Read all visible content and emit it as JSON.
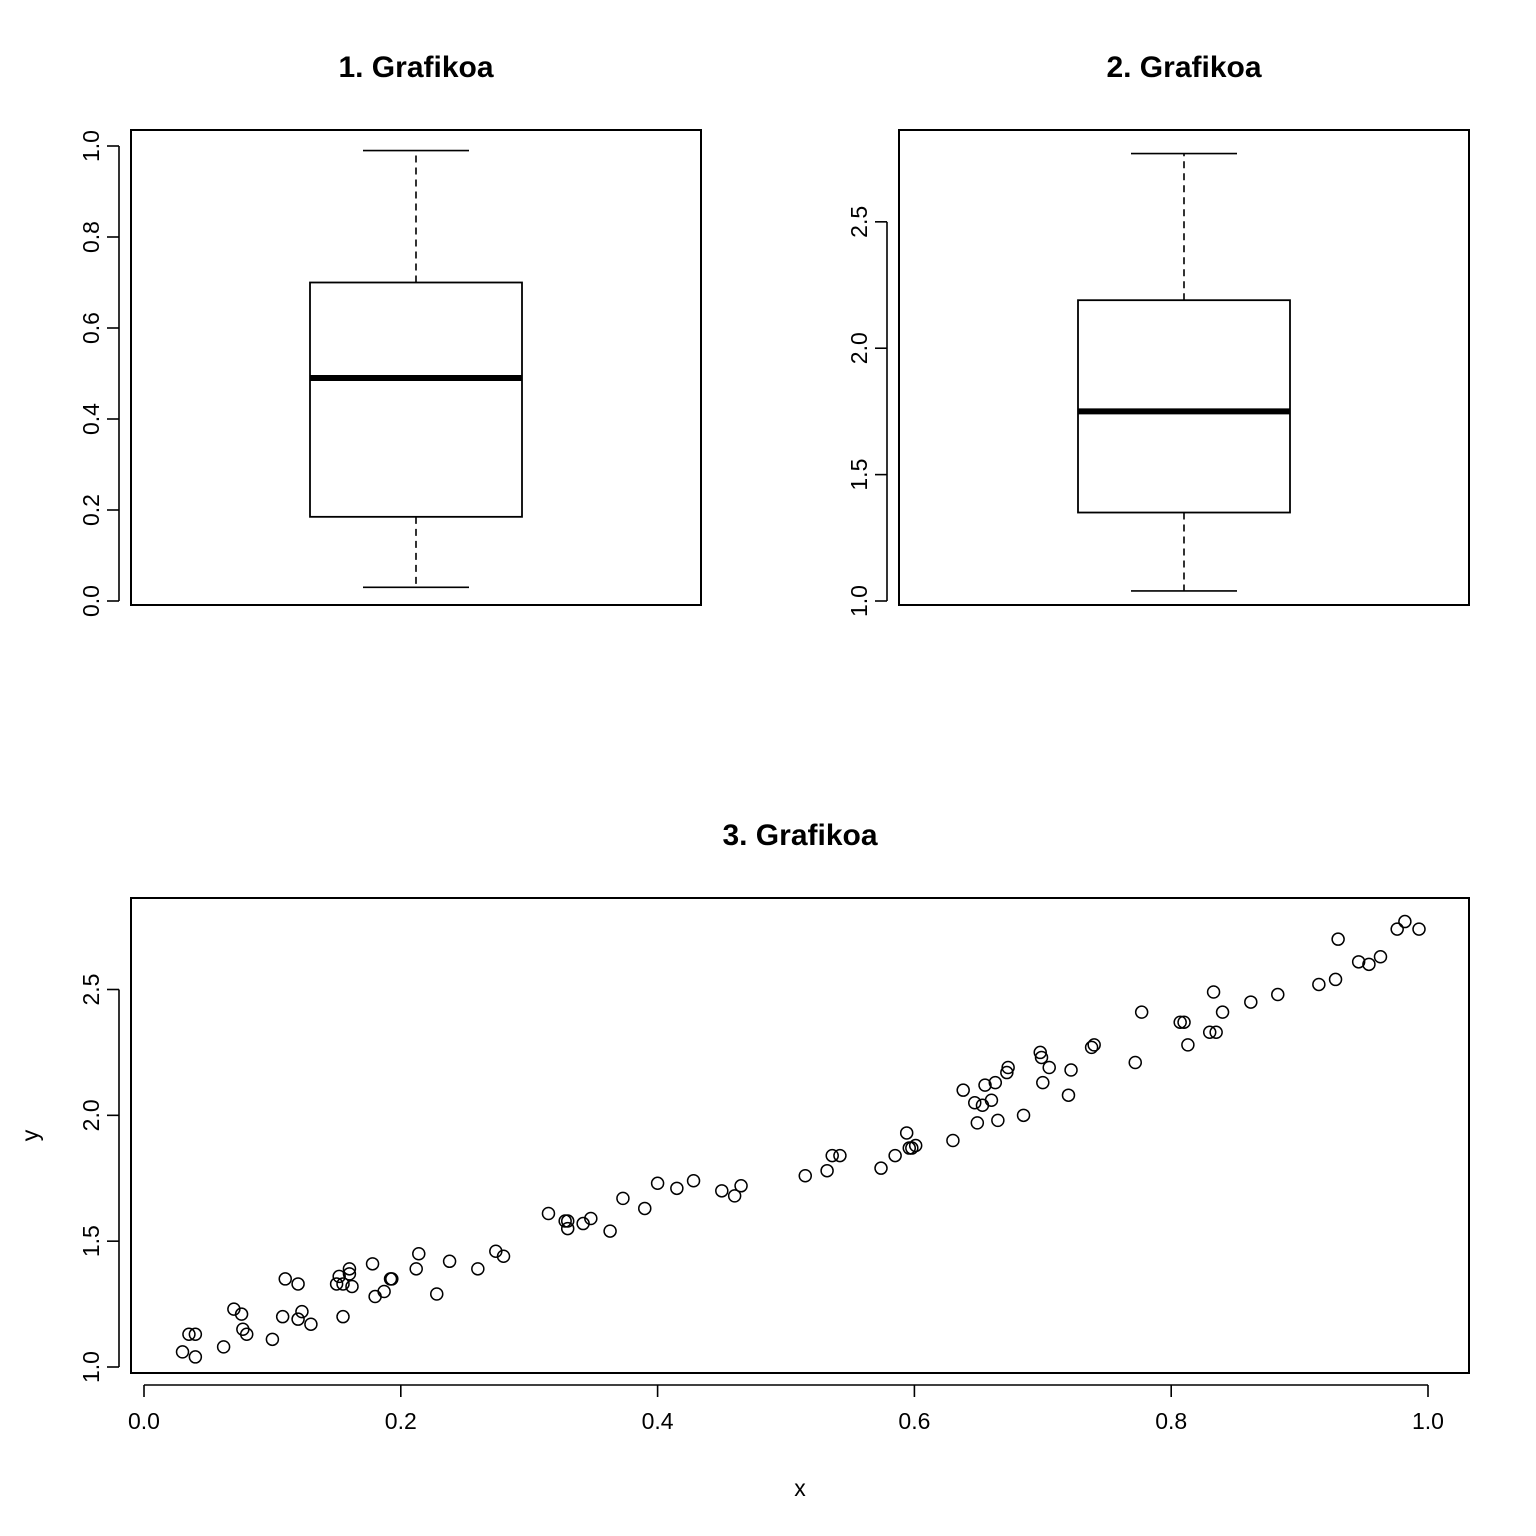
{
  "chart_data": [
    {
      "type": "boxplot",
      "title": "1. Grafikoa",
      "xlabel": "",
      "ylabel": "",
      "ylim": [
        0.0,
        1.0
      ],
      "yticks": [
        "0.0",
        "0.2",
        "0.4",
        "0.6",
        "0.8",
        "1.0"
      ],
      "stats": {
        "whisker_low": 0.03,
        "q1": 0.185,
        "median": 0.49,
        "q3": 0.7,
        "whisker_high": 0.99
      }
    },
    {
      "type": "boxplot",
      "title": "2. Grafikoa",
      "xlabel": "",
      "ylabel": "",
      "ylim": [
        1.0,
        2.8
      ],
      "yticks": [
        "1.0",
        "1.5",
        "2.0",
        "2.5"
      ],
      "stats": {
        "whisker_low": 1.04,
        "q1": 1.35,
        "median": 1.75,
        "q3": 2.19,
        "whisker_high": 2.77
      }
    },
    {
      "type": "scatter",
      "title": "3. Grafikoa",
      "xlabel": "x",
      "ylabel": "y",
      "xlim": [
        0.0,
        1.0
      ],
      "ylim": [
        1.0,
        2.8
      ],
      "xticks": [
        "0.0",
        "0.2",
        "0.4",
        "0.6",
        "0.8",
        "1.0"
      ],
      "yticks": [
        "1.0",
        "1.5",
        "2.0",
        "2.5"
      ],
      "points": [
        [
          0.03,
          1.06
        ],
        [
          0.035,
          1.13
        ],
        [
          0.04,
          1.13
        ],
        [
          0.04,
          1.04
        ],
        [
          0.062,
          1.08
        ],
        [
          0.07,
          1.23
        ],
        [
          0.076,
          1.21
        ],
        [
          0.077,
          1.15
        ],
        [
          0.08,
          1.13
        ],
        [
          0.1,
          1.11
        ],
        [
          0.108,
          1.2
        ],
        [
          0.11,
          1.35
        ],
        [
          0.12,
          1.33
        ],
        [
          0.12,
          1.19
        ],
        [
          0.123,
          1.22
        ],
        [
          0.13,
          1.17
        ],
        [
          0.15,
          1.33
        ],
        [
          0.152,
          1.36
        ],
        [
          0.155,
          1.33
        ],
        [
          0.155,
          1.2
        ],
        [
          0.16,
          1.37
        ],
        [
          0.16,
          1.39
        ],
        [
          0.162,
          1.32
        ],
        [
          0.178,
          1.41
        ],
        [
          0.18,
          1.28
        ],
        [
          0.187,
          1.3
        ],
        [
          0.192,
          1.35
        ],
        [
          0.193,
          1.35
        ],
        [
          0.212,
          1.39
        ],
        [
          0.214,
          1.45
        ],
        [
          0.228,
          1.29
        ],
        [
          0.238,
          1.42
        ],
        [
          0.26,
          1.39
        ],
        [
          0.274,
          1.46
        ],
        [
          0.28,
          1.44
        ],
        [
          0.315,
          1.61
        ],
        [
          0.328,
          1.58
        ],
        [
          0.33,
          1.58
        ],
        [
          0.33,
          1.55
        ],
        [
          0.342,
          1.57
        ],
        [
          0.348,
          1.59
        ],
        [
          0.363,
          1.54
        ],
        [
          0.373,
          1.67
        ],
        [
          0.39,
          1.63
        ],
        [
          0.4,
          1.73
        ],
        [
          0.415,
          1.71
        ],
        [
          0.428,
          1.74
        ],
        [
          0.45,
          1.7
        ],
        [
          0.46,
          1.68
        ],
        [
          0.465,
          1.72
        ],
        [
          0.515,
          1.76
        ],
        [
          0.532,
          1.78
        ],
        [
          0.536,
          1.84
        ],
        [
          0.542,
          1.84
        ],
        [
          0.574,
          1.79
        ],
        [
          0.585,
          1.84
        ],
        [
          0.594,
          1.93
        ],
        [
          0.596,
          1.87
        ],
        [
          0.598,
          1.87
        ],
        [
          0.601,
          1.88
        ],
        [
          0.63,
          1.9
        ],
        [
          0.638,
          2.1
        ],
        [
          0.647,
          2.05
        ],
        [
          0.649,
          1.97
        ],
        [
          0.653,
          2.04
        ],
        [
          0.655,
          2.12
        ],
        [
          0.66,
          2.06
        ],
        [
          0.663,
          2.13
        ],
        [
          0.665,
          1.98
        ],
        [
          0.672,
          2.17
        ],
        [
          0.673,
          2.19
        ],
        [
          0.685,
          2.0
        ],
        [
          0.698,
          2.25
        ],
        [
          0.699,
          2.23
        ],
        [
          0.7,
          2.13
        ],
        [
          0.705,
          2.19
        ],
        [
          0.72,
          2.08
        ],
        [
          0.722,
          2.18
        ],
        [
          0.738,
          2.27
        ],
        [
          0.74,
          2.28
        ],
        [
          0.772,
          2.21
        ],
        [
          0.777,
          2.41
        ],
        [
          0.807,
          2.37
        ],
        [
          0.81,
          2.37
        ],
        [
          0.813,
          2.28
        ],
        [
          0.83,
          2.33
        ],
        [
          0.833,
          2.49
        ],
        [
          0.835,
          2.33
        ],
        [
          0.84,
          2.41
        ],
        [
          0.862,
          2.45
        ],
        [
          0.883,
          2.48
        ],
        [
          0.915,
          2.52
        ],
        [
          0.928,
          2.54
        ],
        [
          0.93,
          2.7
        ],
        [
          0.946,
          2.61
        ],
        [
          0.954,
          2.6
        ],
        [
          0.963,
          2.63
        ],
        [
          0.976,
          2.74
        ],
        [
          0.982,
          2.77
        ],
        [
          0.993,
          2.74
        ]
      ]
    }
  ]
}
